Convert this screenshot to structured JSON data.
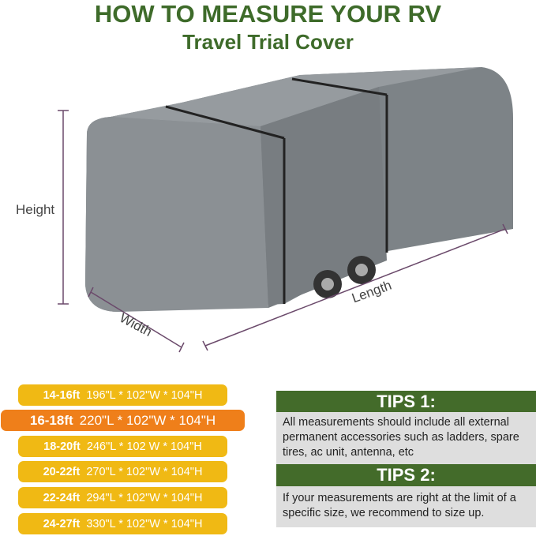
{
  "title": "HOW TO MEASURE YOUR RV",
  "subtitle": "Travel Trial Cover",
  "diagram": {
    "height_label": "Height",
    "width_label": "Width",
    "length_label": "Length",
    "dimension_color": "#6b4a6b",
    "cover_color": "#7d8387"
  },
  "sizes": [
    {
      "range": "14-16ft",
      "dims": "196\"L * 102\"W * 104\"H",
      "highlight": false
    },
    {
      "range": "16-18ft",
      "dims": "220\"L * 102\"W * 104\"H",
      "highlight": true
    },
    {
      "range": "18-20ft",
      "dims": "246\"L * 102 W * 104\"H",
      "highlight": false
    },
    {
      "range": "20-22ft",
      "dims": "270\"L * 102\"W * 104\"H",
      "highlight": false
    },
    {
      "range": "22-24ft",
      "dims": "294\"L * 102\"W * 104\"H",
      "highlight": false
    },
    {
      "range": "24-27ft",
      "dims": "330\"L * 102\"W * 104\"H",
      "highlight": false
    }
  ],
  "tips": [
    {
      "title": "TIPS 1:",
      "text": "All measurements should include all external permanent accessories such as ladders, spare tires, ac unit, antenna, etc"
    },
    {
      "title": "TIPS 2:",
      "text": "If your measurements are right at the limit of a specific size, we recommend to size up."
    }
  ]
}
